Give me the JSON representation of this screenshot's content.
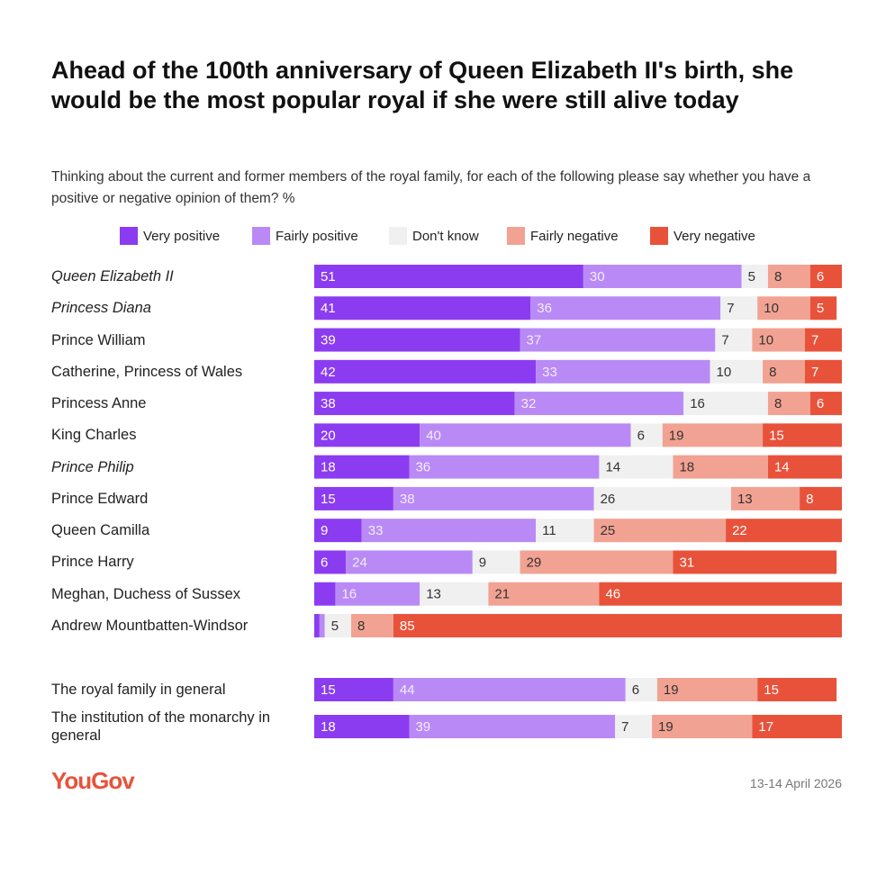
{
  "chart_data": {
    "type": "stacked-bar-horizontal",
    "title": "Ahead of the 100th anniversary of Queen Elizabeth II's birth, she would be the most popular royal if she were still alive today",
    "subtitle": "Thinking about the current and former members of the royal family, for each of the following please say whether you have a positive or negative opinion of them? %",
    "source": "YouGov",
    "date": "13-14 April 2026",
    "categories": [
      "Queen Elizabeth II",
      "Princess Diana",
      "Prince William",
      "Catherine, Princess of Wales",
      "Princess Anne",
      "King Charles",
      "Prince Philip",
      "Prince Edward",
      "Queen Camilla",
      "Prince Harry",
      "Meghan, Duchess of Sussex",
      "Andrew Mountbatten-Windsor",
      "The royal family in general",
      "The institution of the monarchy in general"
    ],
    "category_styles": [
      "italic",
      "italic",
      "normal",
      "normal",
      "normal",
      "normal",
      "italic",
      "normal",
      "normal",
      "normal",
      "normal",
      "normal",
      "normal",
      "normal"
    ],
    "xlim": [
      0,
      100
    ],
    "label_min": 5,
    "series": [
      {
        "name": "Very positive",
        "color": "#8b3cf0",
        "label_color": "#ffffff",
        "values": [
          51,
          41,
          39,
          42,
          38,
          20,
          18,
          15,
          9,
          6,
          4,
          1,
          15,
          18
        ]
      },
      {
        "name": "Fairly positive",
        "color": "#b98af6",
        "label_color": "#f3ecff",
        "values": [
          30,
          36,
          37,
          33,
          32,
          40,
          36,
          38,
          33,
          24,
          16,
          1,
          44,
          39
        ]
      },
      {
        "name": "Don't know",
        "color": "#f0f0f0",
        "label_color": "#333333",
        "values": [
          5,
          7,
          7,
          10,
          16,
          6,
          14,
          26,
          11,
          9,
          13,
          5,
          6,
          7
        ]
      },
      {
        "name": "Fairly negative",
        "color": "#f2a292",
        "label_color": "#333333",
        "values": [
          8,
          10,
          10,
          8,
          8,
          19,
          18,
          13,
          25,
          29,
          21,
          8,
          19,
          19
        ]
      },
      {
        "name": "Very negative",
        "color": "#e8523a",
        "label_color": "#ffffff",
        "values": [
          6,
          5,
          7,
          7,
          6,
          15,
          14,
          8,
          22,
          31,
          46,
          85,
          15,
          17
        ]
      }
    ]
  }
}
